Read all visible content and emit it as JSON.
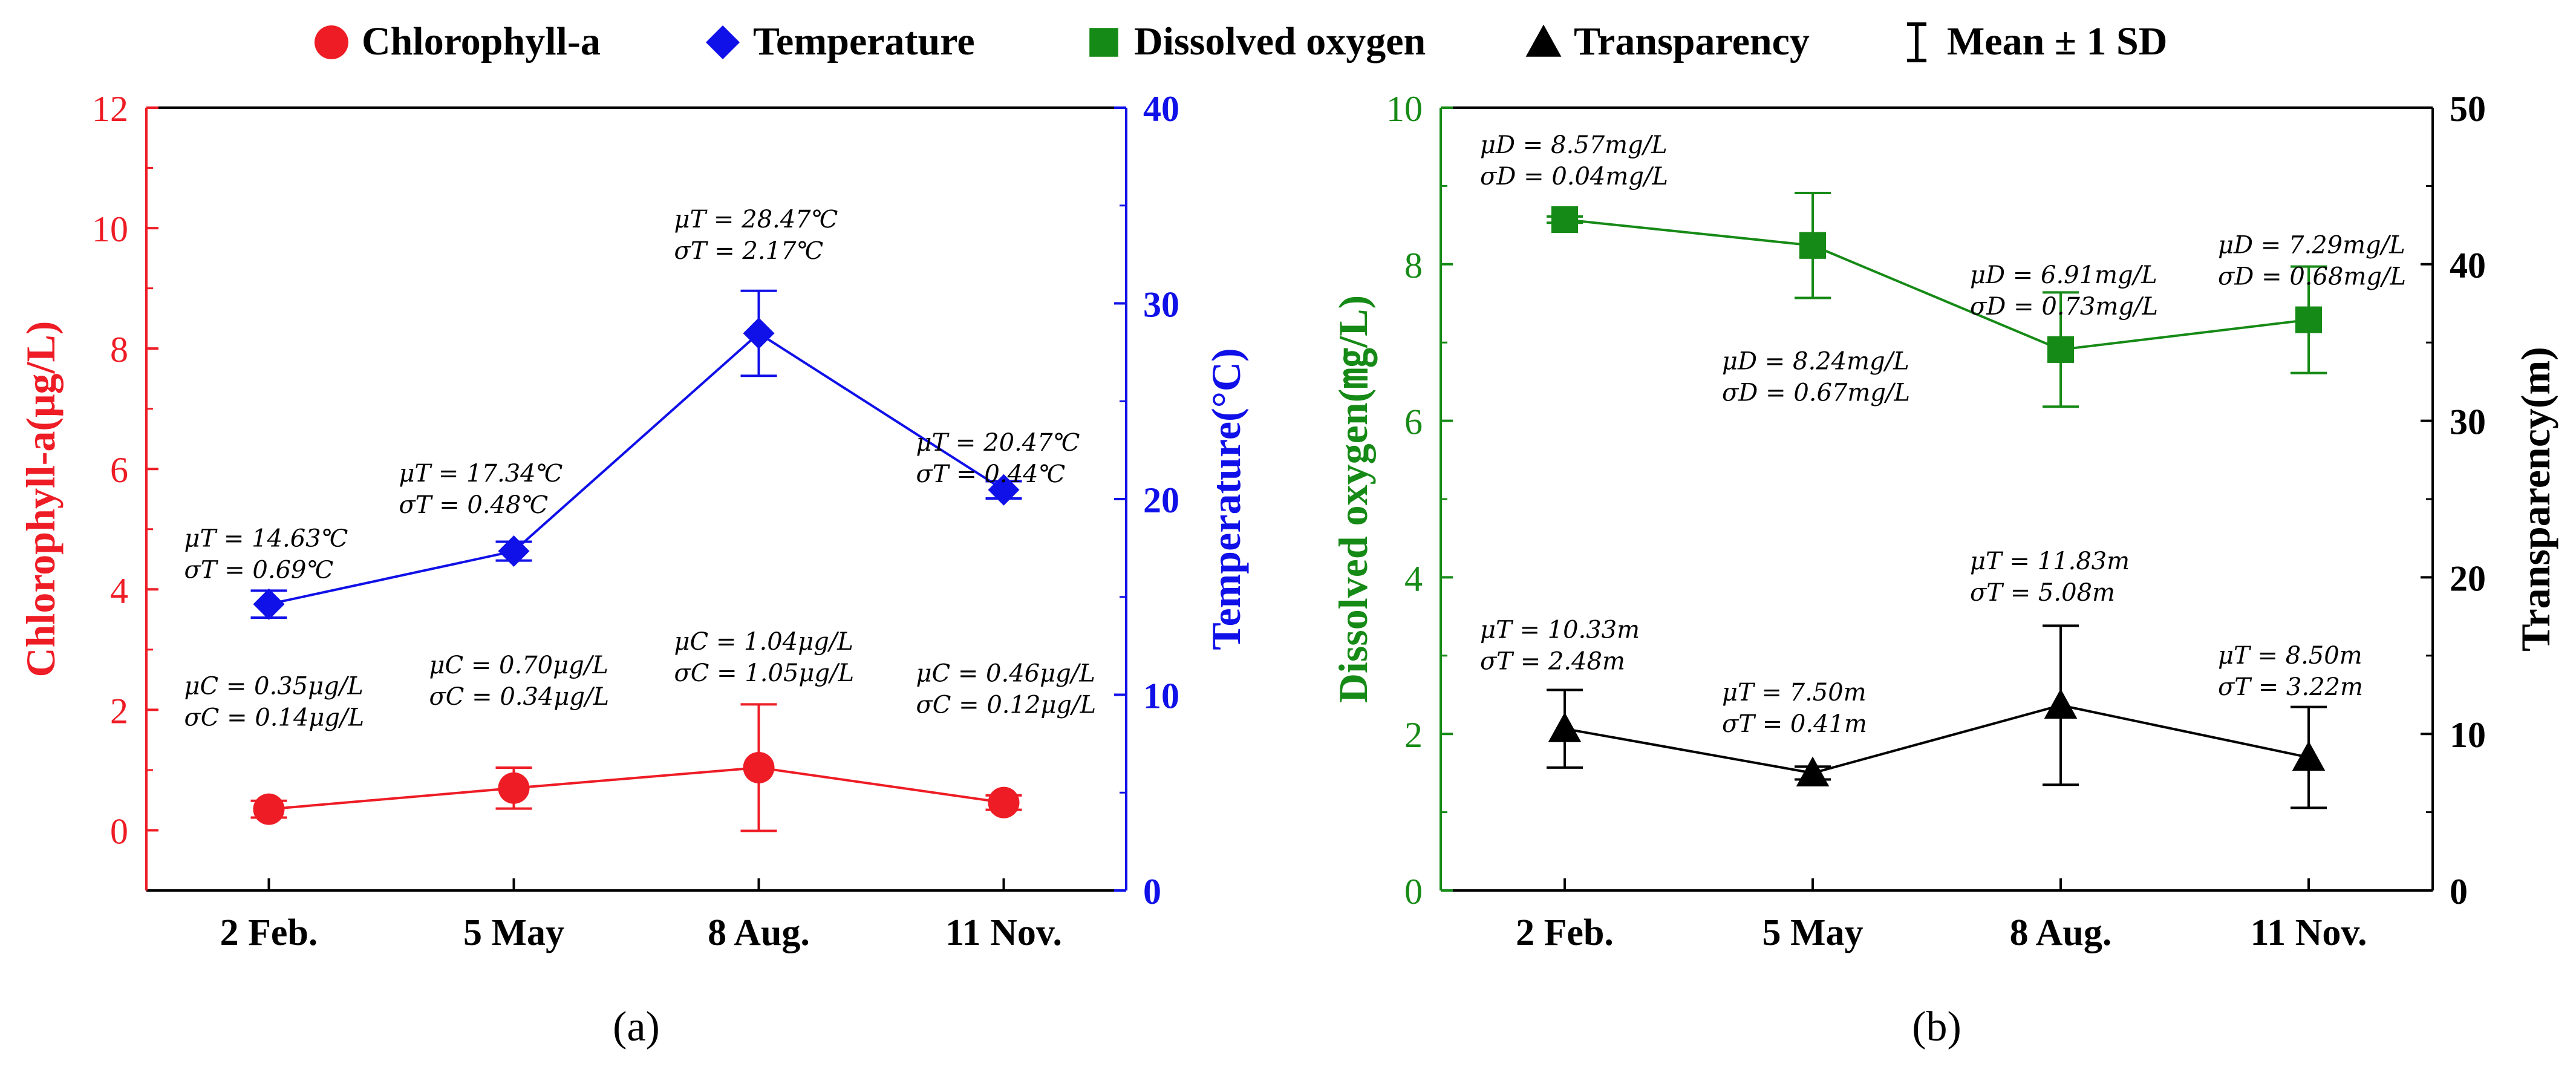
{
  "legend": {
    "items": [
      {
        "label": "Chlorophyll-a",
        "marker": "circle",
        "color": "#ee1c25"
      },
      {
        "label": "Temperature",
        "marker": "diamond",
        "color": "#1010e8"
      },
      {
        "label": "Dissolved oxygen",
        "marker": "square",
        "color": "#168a16"
      },
      {
        "label": "Transparency",
        "marker": "triangle",
        "color": "#000000"
      },
      {
        "label": "Mean ± 1 SD",
        "marker": "errorbar",
        "color": "#000000"
      }
    ]
  },
  "colors": {
    "red": "#ee1c25",
    "blue": "#1010e8",
    "green": "#168a16",
    "black": "#000000"
  },
  "chart_data": [
    {
      "id": "a",
      "type": "line",
      "caption": "(a)",
      "categories": [
        "2 Feb.",
        "5 May",
        "8 Aug.",
        "11 Nov."
      ],
      "left_axis": {
        "label": "Chlorophyll-a(μg/L)",
        "range": [
          -1,
          12
        ],
        "ticks": [
          0,
          2,
          4,
          6,
          8,
          10,
          12
        ],
        "color": "#ee1c25"
      },
      "right_axis": {
        "label": "Temperature(°C)",
        "range": [
          0,
          40
        ],
        "ticks": [
          0,
          10,
          20,
          30,
          40
        ],
        "color": "#1010e8"
      },
      "series": [
        {
          "name": "Chlorophyll-a",
          "axis": "left",
          "marker": "circle",
          "color": "#ee1c25",
          "values": [
            0.35,
            0.7,
            1.04,
            0.46
          ],
          "sd": [
            0.14,
            0.34,
            1.05,
            0.12
          ],
          "annotations": [
            {
              "mu": "μC = 0.35μg/L",
              "sigma": "σC = 0.14μg/L"
            },
            {
              "mu": "μC = 0.70μg/L",
              "sigma": "σC = 0.34μg/L"
            },
            {
              "mu": "μC = 1.04μg/L",
              "sigma": "σC = 1.05μg/L"
            },
            {
              "mu": "μC = 0.46μg/L",
              "sigma": "σC = 0.12μg/L"
            }
          ]
        },
        {
          "name": "Temperature",
          "axis": "right",
          "marker": "diamond",
          "color": "#1010e8",
          "values": [
            14.63,
            17.34,
            28.47,
            20.47
          ],
          "sd": [
            0.69,
            0.48,
            2.17,
            0.44
          ],
          "annotations": [
            {
              "mu": "μT = 14.63℃",
              "sigma": "σT = 0.69℃"
            },
            {
              "mu": "μT = 17.34℃",
              "sigma": "σT = 0.48℃"
            },
            {
              "mu": "μT = 28.47℃",
              "sigma": "σT = 2.17℃"
            },
            {
              "mu": "μT = 20.47℃",
              "sigma": "σT = 0.44℃"
            }
          ]
        }
      ]
    },
    {
      "id": "b",
      "type": "line",
      "caption": "(b)",
      "categories": [
        "2 Feb.",
        "5 May",
        "8 Aug.",
        "11 Nov."
      ],
      "left_axis": {
        "label": "Dissolved oxygen(㎎/L)",
        "range": [
          0,
          10
        ],
        "ticks": [
          0,
          2,
          4,
          6,
          8,
          10
        ],
        "color": "#168a16"
      },
      "right_axis": {
        "label": "Transparency(m)",
        "range": [
          0,
          50
        ],
        "ticks": [
          0,
          10,
          20,
          30,
          40,
          50
        ],
        "color": "#000000"
      },
      "series": [
        {
          "name": "Dissolved oxygen",
          "axis": "left",
          "marker": "square",
          "color": "#168a16",
          "values": [
            8.57,
            8.24,
            6.91,
            7.29
          ],
          "sd": [
            0.04,
            0.67,
            0.73,
            0.68
          ],
          "annotations": [
            {
              "mu": "μD = 8.57mg/L",
              "sigma": "σD = 0.04mg/L"
            },
            {
              "mu": "μD = 8.24mg/L",
              "sigma": "σD = 0.67mg/L"
            },
            {
              "mu": "μD = 6.91mg/L",
              "sigma": "σD = 0.73mg/L"
            },
            {
              "mu": "μD = 7.29mg/L",
              "sigma": "σD = 0.68mg/L"
            }
          ]
        },
        {
          "name": "Transparency",
          "axis": "right",
          "marker": "triangle",
          "color": "#000000",
          "values": [
            10.33,
            7.5,
            11.83,
            8.5
          ],
          "sd": [
            2.48,
            0.41,
            5.08,
            3.22
          ],
          "annotations": [
            {
              "mu": "μT = 10.33m",
              "sigma": "σT = 2.48m"
            },
            {
              "mu": "μT = 7.50m",
              "sigma": "σT = 0.41m"
            },
            {
              "mu": "μT = 11.83m",
              "sigma": "σT = 5.08m"
            },
            {
              "mu": "μT = 8.50m",
              "sigma": "σT = 3.22m"
            }
          ]
        }
      ]
    }
  ]
}
